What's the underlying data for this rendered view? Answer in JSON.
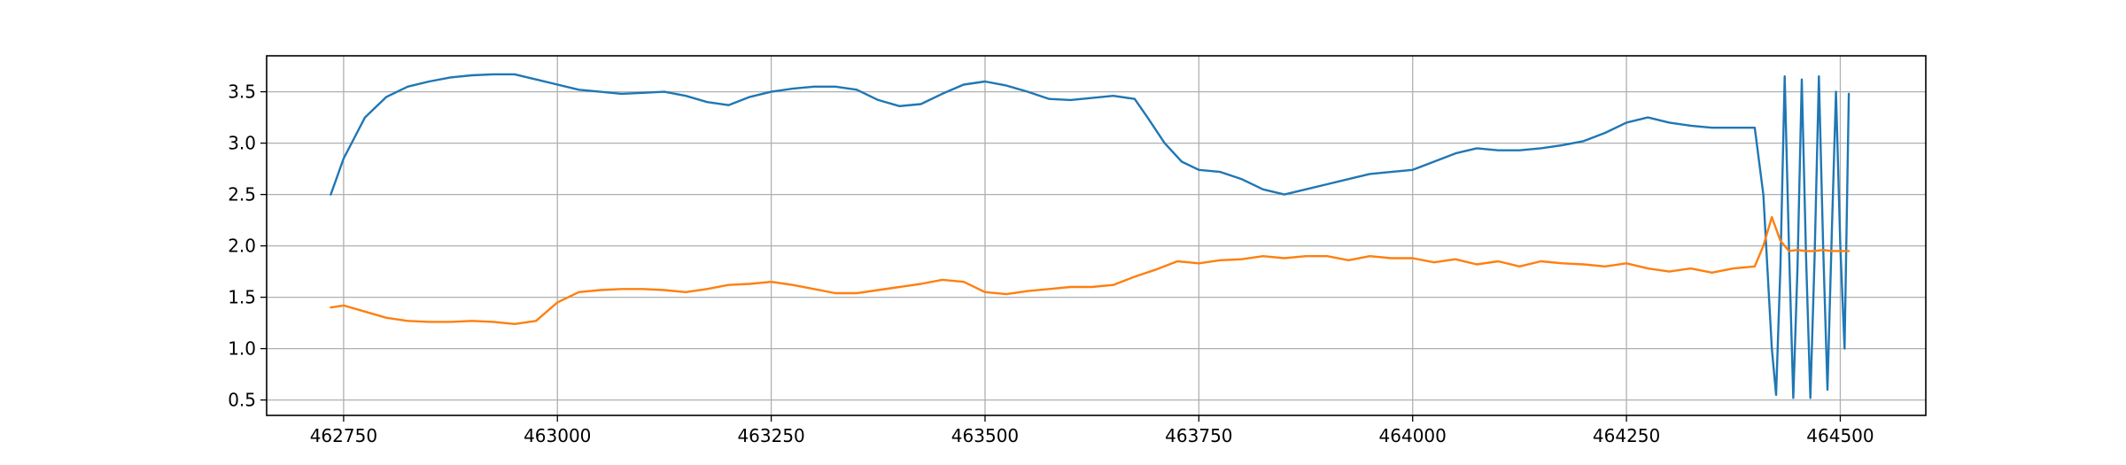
{
  "chart_data": {
    "type": "line",
    "title": "",
    "xlabel": "",
    "ylabel": "",
    "xlim": [
      462660,
      464600
    ],
    "ylim": [
      0.35,
      3.85
    ],
    "grid": true,
    "x_ticks": [
      462750,
      463000,
      463250,
      463500,
      463750,
      464000,
      464250,
      464500
    ],
    "x_tick_labels": [
      "462750",
      "463000",
      "463250",
      "463500",
      "463750",
      "464000",
      "464250",
      "464500"
    ],
    "y_ticks": [
      0.5,
      1.0,
      1.5,
      2.0,
      2.5,
      3.0,
      3.5
    ],
    "y_tick_labels": [
      "0.5",
      "1.0",
      "1.5",
      "2.0",
      "2.5",
      "3.0",
      "3.5"
    ],
    "series": [
      {
        "color": "#1f77b4",
        "x": [
          462735,
          462750,
          462775,
          462800,
          462825,
          462850,
          462875,
          462900,
          462925,
          462950,
          462975,
          463000,
          463025,
          463050,
          463075,
          463100,
          463125,
          463150,
          463175,
          463200,
          463225,
          463250,
          463275,
          463300,
          463325,
          463350,
          463375,
          463400,
          463425,
          463450,
          463475,
          463500,
          463525,
          463550,
          463575,
          463600,
          463625,
          463650,
          463675,
          463690,
          463710,
          463730,
          463750,
          463775,
          463800,
          463825,
          463850,
          463875,
          463900,
          463925,
          463950,
          463975,
          464000,
          464025,
          464050,
          464075,
          464100,
          464125,
          464150,
          464175,
          464200,
          464225,
          464250,
          464275,
          464300,
          464325,
          464350,
          464375,
          464400,
          464410,
          464420,
          464425,
          464430,
          464435,
          464440,
          464445,
          464450,
          464455,
          464460,
          464465,
          464470,
          464475,
          464480,
          464485,
          464490,
          464495,
          464500,
          464505,
          464510
        ],
        "values": [
          2.5,
          2.85,
          3.25,
          3.45,
          3.55,
          3.6,
          3.64,
          3.66,
          3.67,
          3.67,
          3.62,
          3.57,
          3.52,
          3.5,
          3.48,
          3.49,
          3.5,
          3.46,
          3.4,
          3.37,
          3.45,
          3.5,
          3.53,
          3.55,
          3.55,
          3.52,
          3.42,
          3.36,
          3.38,
          3.48,
          3.57,
          3.6,
          3.56,
          3.5,
          3.43,
          3.42,
          3.44,
          3.46,
          3.43,
          3.25,
          3.0,
          2.82,
          2.74,
          2.72,
          2.65,
          2.55,
          2.5,
          2.55,
          2.6,
          2.65,
          2.7,
          2.72,
          2.74,
          2.82,
          2.9,
          2.95,
          2.93,
          2.93,
          2.95,
          2.98,
          3.02,
          3.1,
          3.2,
          3.25,
          3.2,
          3.17,
          3.15,
          3.15,
          3.15,
          2.5,
          1.0,
          0.55,
          1.8,
          3.65,
          2.0,
          0.52,
          1.8,
          3.62,
          1.9,
          0.52,
          1.9,
          3.65,
          2.0,
          0.6,
          2.1,
          3.5,
          2.0,
          1.0,
          3.48
        ]
      },
      {
        "color": "#ff7f0e",
        "x": [
          462735,
          462750,
          462775,
          462800,
          462825,
          462850,
          462875,
          462900,
          462925,
          462950,
          462975,
          463000,
          463025,
          463050,
          463075,
          463100,
          463125,
          463150,
          463175,
          463200,
          463225,
          463250,
          463275,
          463300,
          463325,
          463350,
          463375,
          463400,
          463425,
          463450,
          463475,
          463500,
          463525,
          463550,
          463575,
          463600,
          463625,
          463650,
          463675,
          463700,
          463725,
          463750,
          463775,
          463800,
          463825,
          463850,
          463875,
          463900,
          463925,
          463950,
          463975,
          464000,
          464025,
          464050,
          464075,
          464100,
          464125,
          464150,
          464175,
          464200,
          464225,
          464250,
          464275,
          464300,
          464325,
          464350,
          464375,
          464400,
          464410,
          464420,
          464430,
          464440,
          464450,
          464460,
          464470,
          464480,
          464490,
          464500,
          464510
        ],
        "values": [
          1.4,
          1.42,
          1.36,
          1.3,
          1.27,
          1.26,
          1.26,
          1.27,
          1.26,
          1.24,
          1.27,
          1.45,
          1.55,
          1.57,
          1.58,
          1.58,
          1.57,
          1.55,
          1.58,
          1.62,
          1.63,
          1.65,
          1.62,
          1.58,
          1.54,
          1.54,
          1.57,
          1.6,
          1.63,
          1.67,
          1.65,
          1.55,
          1.53,
          1.56,
          1.58,
          1.6,
          1.6,
          1.62,
          1.7,
          1.77,
          1.85,
          1.83,
          1.86,
          1.87,
          1.9,
          1.88,
          1.9,
          1.9,
          1.86,
          1.9,
          1.88,
          1.88,
          1.84,
          1.87,
          1.82,
          1.85,
          1.8,
          1.85,
          1.83,
          1.82,
          1.8,
          1.83,
          1.78,
          1.75,
          1.78,
          1.74,
          1.78,
          1.8,
          2.0,
          2.28,
          2.05,
          1.95,
          1.96,
          1.95,
          1.95,
          1.96,
          1.95,
          1.95,
          1.95
        ]
      }
    ]
  }
}
